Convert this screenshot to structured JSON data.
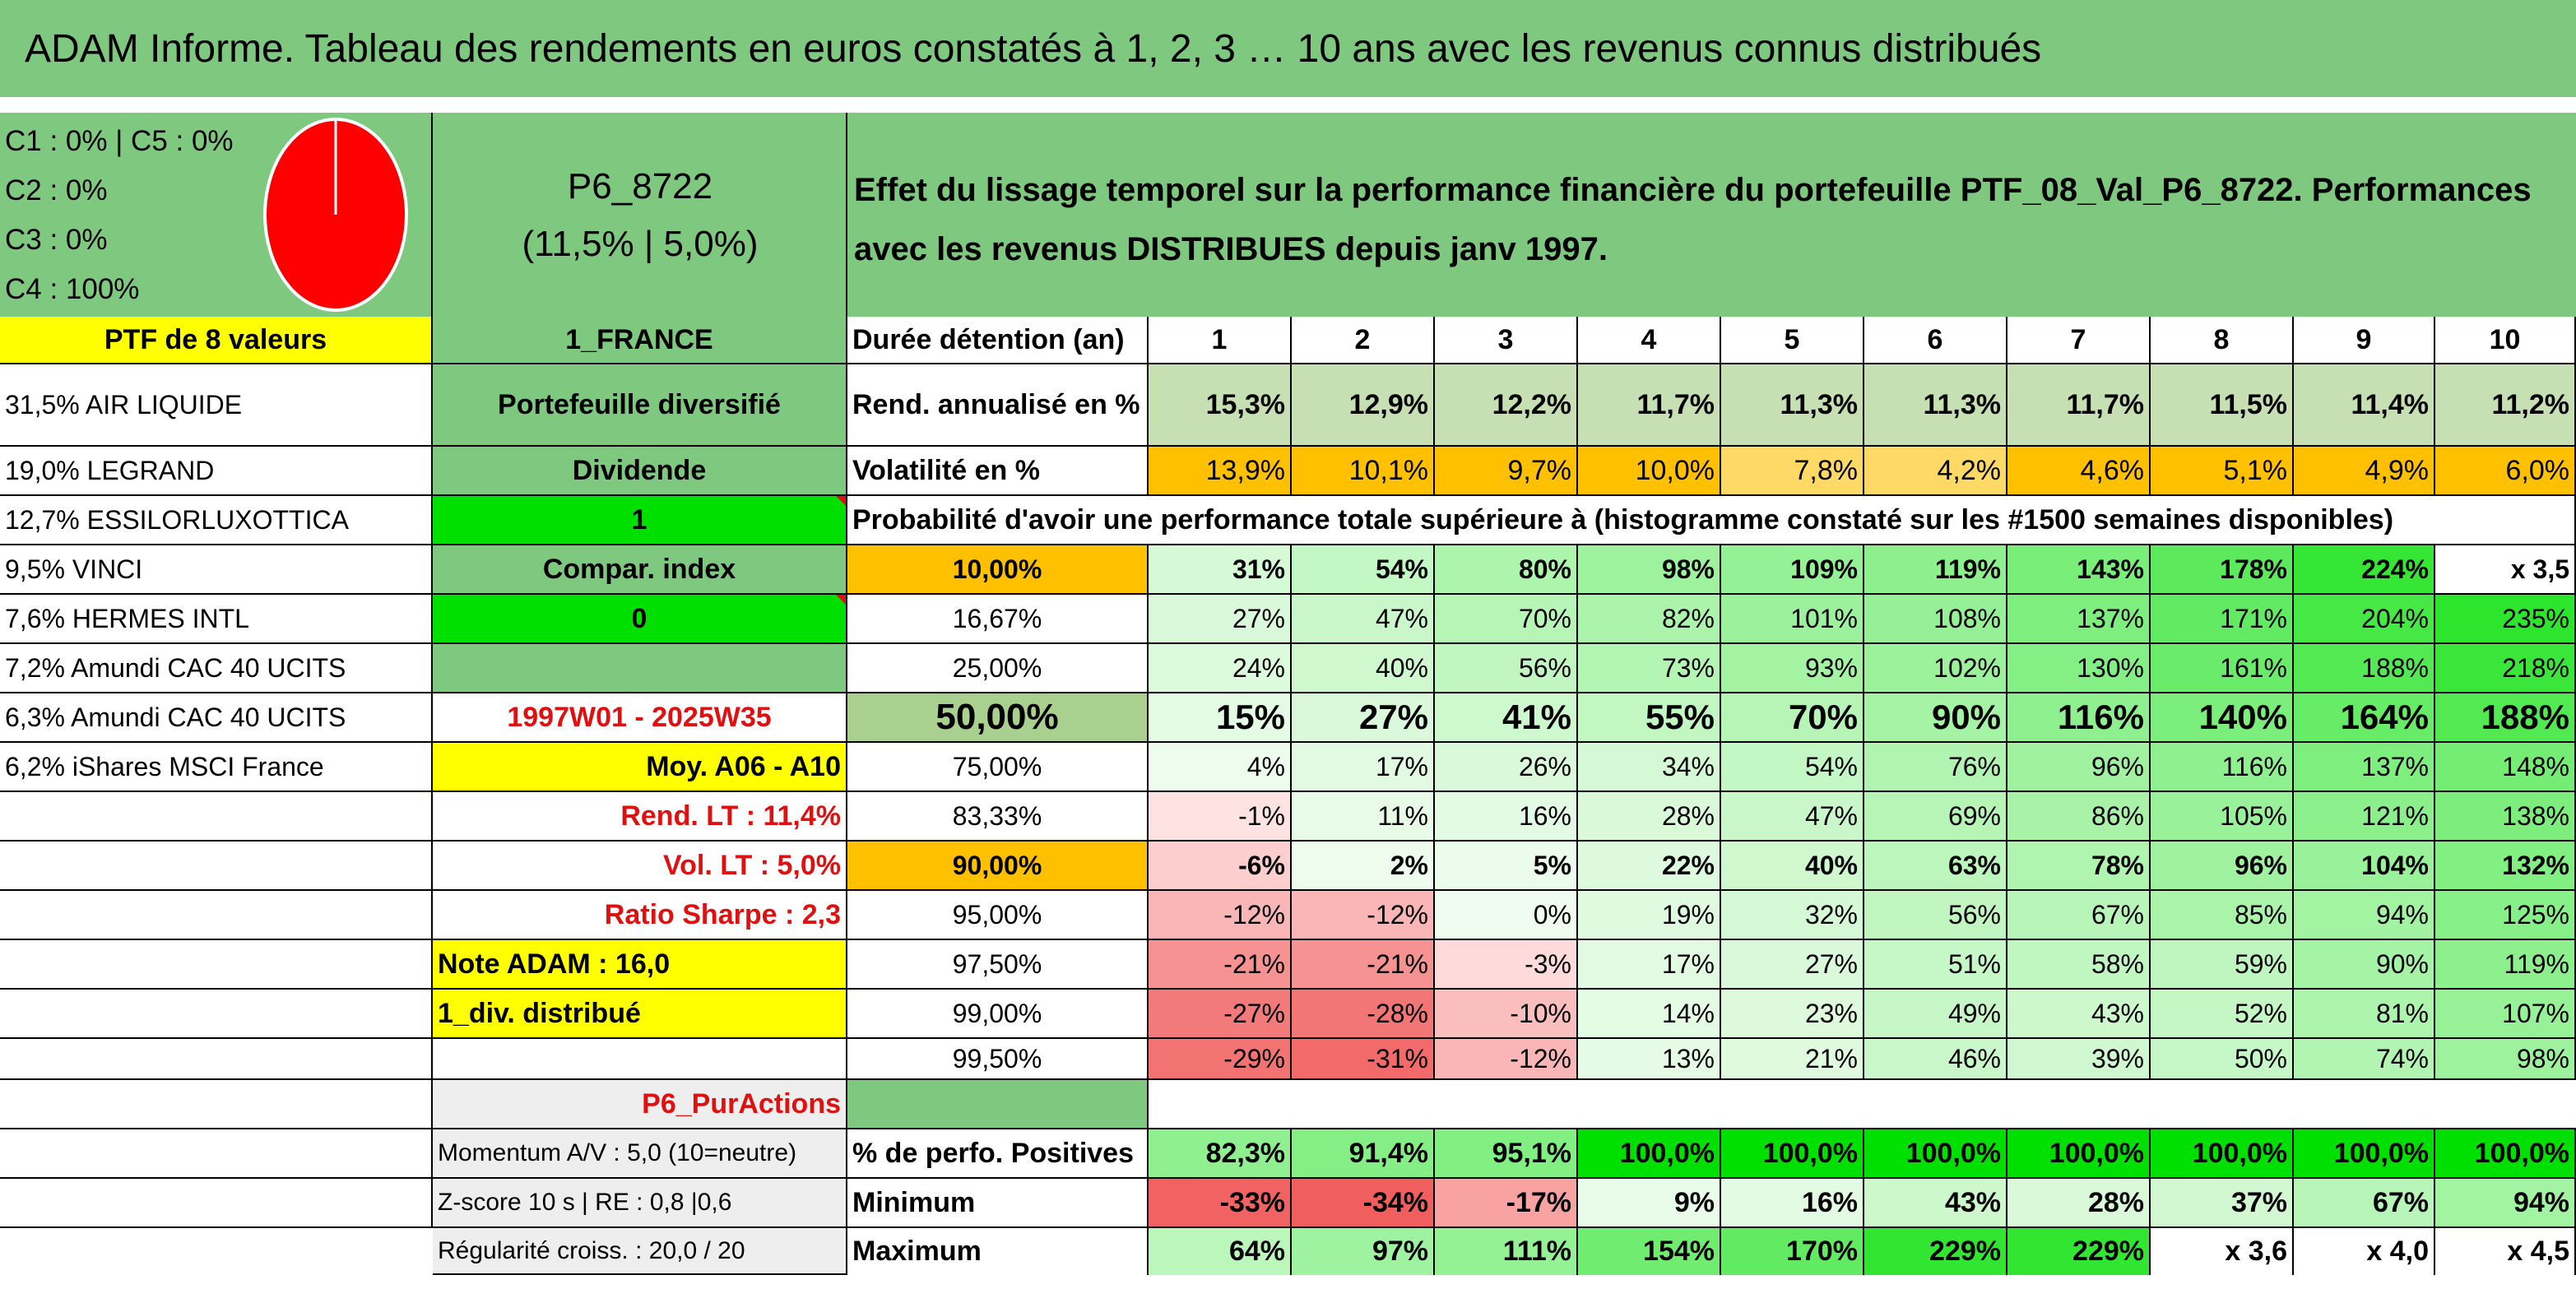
{
  "title": "ADAM Informe. Tableau des rendements en euros constatés à 1, 2, 3 … 10 ans avec les revenus connus distribués",
  "colors": {
    "header_green": "#7fc87f",
    "yellow": "#ffff00",
    "orange": "#ffc000",
    "bright_green": "#00e000",
    "red_text": "#e01010"
  },
  "pie": {
    "c1": "C1 : 0% | C5 : 0%",
    "c2": "C2 : 0%",
    "c3": "C3 : 0%",
    "c4": "C4 : 100%"
  },
  "portfolio": {
    "code": "P6_8722",
    "code_sub": "(11,5% | 5,0%)",
    "ptf_label": "PTF de 8 valeurs",
    "country": "1_FRANCE",
    "type": "Portefeuille diversifié",
    "dividend_label": "Dividende",
    "dividend_value": "1",
    "compar_label": "Compar. index",
    "compar_value": "0",
    "period": "1997W01 - 2025W35",
    "moy": "Moy. A06 - A10",
    "rend_lt": "Rend. LT : 11,4%",
    "vol_lt": "Vol. LT : 5,0%",
    "sharpe": "Ratio Sharpe : 2,3",
    "note": "Note ADAM : 16,0",
    "div": "1_div. distribué",
    "pur": "P6_PurActions",
    "momentum": "Momentum A/V : 5,0 (10=neutre)",
    "zscore": "Z-score 10 s | RE : 0,8 |0,6",
    "regularite": "Régularité croiss. : 20,0 / 20"
  },
  "holdings": [
    "31,5% AIR LIQUIDE",
    "19,0% LEGRAND",
    "12,7% ESSILORLUXOTTICA",
    "9,5% VINCI",
    "7,6% HERMES INTL",
    "7,2% Amundi CAC 40 UCITS",
    "6,3% Amundi CAC 40 UCITS",
    "6,2% iShares MSCI France"
  ],
  "description": "Effet du lissage temporel sur la performance financière du portefeuille PTF_08_Val_P6_8722. Performances avec les revenus DISTRIBUES depuis janv 1997.",
  "table": {
    "duration_label": "Durée détention (an)",
    "years": [
      "1",
      "2",
      "3",
      "4",
      "5",
      "6",
      "7",
      "8",
      "9",
      "10"
    ],
    "rend_label": "Rend. annualisé en %",
    "rend": [
      "15,3%",
      "12,9%",
      "12,2%",
      "11,7%",
      "11,3%",
      "11,3%",
      "11,7%",
      "11,5%",
      "11,4%",
      "11,2%"
    ],
    "vol_label": "Volatilité en %",
    "vol": [
      "13,9%",
      "10,1%",
      "9,7%",
      "10,0%",
      "7,8%",
      "4,2%",
      "4,6%",
      "5,1%",
      "4,9%",
      "6,0%"
    ],
    "prob_title": "Probabilité d'avoir une performance totale supérieure à (histogramme constaté sur les #1500 semaines disponibles)",
    "prob_rows": [
      {
        "p": "10,00%",
        "v": [
          "31%",
          "54%",
          "80%",
          "98%",
          "109%",
          "119%",
          "143%",
          "178%",
          "224%",
          "x 3,5"
        ]
      },
      {
        "p": "16,67%",
        "v": [
          "27%",
          "47%",
          "70%",
          "82%",
          "101%",
          "108%",
          "137%",
          "171%",
          "204%",
          "235%"
        ]
      },
      {
        "p": "25,00%",
        "v": [
          "24%",
          "40%",
          "56%",
          "73%",
          "93%",
          "102%",
          "130%",
          "161%",
          "188%",
          "218%"
        ]
      },
      {
        "p": "50,00%",
        "v": [
          "15%",
          "27%",
          "41%",
          "55%",
          "70%",
          "90%",
          "116%",
          "140%",
          "164%",
          "188%"
        ]
      },
      {
        "p": "75,00%",
        "v": [
          "4%",
          "17%",
          "26%",
          "34%",
          "54%",
          "76%",
          "96%",
          "116%",
          "137%",
          "148%"
        ]
      },
      {
        "p": "83,33%",
        "v": [
          "-1%",
          "11%",
          "16%",
          "28%",
          "47%",
          "69%",
          "86%",
          "105%",
          "121%",
          "138%"
        ]
      },
      {
        "p": "90,00%",
        "v": [
          "-6%",
          "2%",
          "5%",
          "22%",
          "40%",
          "63%",
          "78%",
          "96%",
          "104%",
          "132%"
        ]
      },
      {
        "p": "95,00%",
        "v": [
          "-12%",
          "-12%",
          "0%",
          "19%",
          "32%",
          "56%",
          "67%",
          "85%",
          "94%",
          "125%"
        ]
      },
      {
        "p": "97,50%",
        "v": [
          "-21%",
          "-21%",
          "-3%",
          "17%",
          "27%",
          "51%",
          "58%",
          "59%",
          "90%",
          "119%"
        ]
      },
      {
        "p": "99,00%",
        "v": [
          "-27%",
          "-28%",
          "-10%",
          "14%",
          "23%",
          "49%",
          "43%",
          "52%",
          "81%",
          "107%"
        ]
      },
      {
        "p": "99,50%",
        "v": [
          "-29%",
          "-31%",
          "-12%",
          "13%",
          "21%",
          "46%",
          "39%",
          "50%",
          "74%",
          "98%"
        ]
      }
    ],
    "pos_label": "% de perfo. Positives",
    "pos": [
      "82,3%",
      "91,4%",
      "95,1%",
      "100,0%",
      "100,0%",
      "100,0%",
      "100,0%",
      "100,0%",
      "100,0%",
      "100,0%"
    ],
    "min_label": "Minimum",
    "min": [
      "-33%",
      "-34%",
      "-17%",
      "9%",
      "16%",
      "43%",
      "28%",
      "37%",
      "67%",
      "94%"
    ],
    "max_label": "Maximum",
    "max": [
      "64%",
      "97%",
      "111%",
      "154%",
      "170%",
      "229%",
      "229%",
      "x 3,6",
      "x 4,0",
      "x 4,5"
    ]
  }
}
